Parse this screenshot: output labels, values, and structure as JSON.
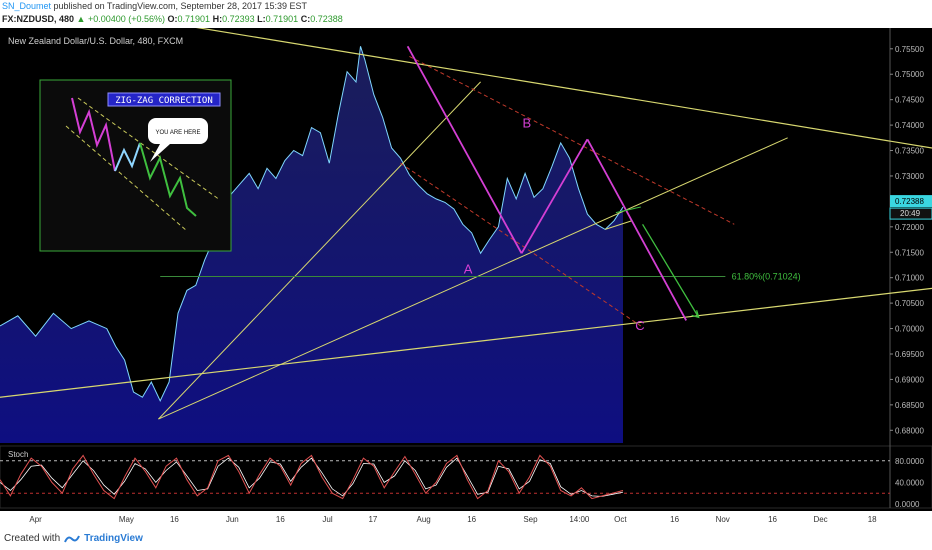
{
  "header": {
    "user": "SN_Doumet",
    "published_text": "published on TradingView.com, September 28, 2017 15:39 EST",
    "symbol": "FX:NZDUSD, 480",
    "change": "▲ +0.00400 (+0.56%)",
    "ohlc": [
      {
        "k": "O:",
        "v": "0.71901"
      },
      {
        "k": "H:",
        "v": "0.72393"
      },
      {
        "k": "L:",
        "v": "0.71901"
      },
      {
        "k": "C:",
        "v": "0.72388"
      }
    ]
  },
  "footer": {
    "created_with": "Created with",
    "brand": "TradingView"
  },
  "colors": {
    "background": "#000000",
    "price_line": "#7fd6ff",
    "area_top": "#1c1f5e",
    "area_bottom": "#0f0f88",
    "trendline": "#d8d870",
    "wave": "#d43fd4",
    "channel": "#c0392b",
    "fib": "#3a8a3a",
    "stoch_k": "#e05050",
    "stoch_d": "#ffffff",
    "green": "#3fbf3f",
    "price_badge": "#3ad6e0"
  },
  "chart_data": {
    "type": "line",
    "title": "New Zealand Dollar/U.S. Dollar, 480, FXCM",
    "ylim": [
      0.6775,
      0.7585
    ],
    "y_ticks": [
      "0.75500",
      "0.75000",
      "0.74500",
      "0.74000",
      "0.73500",
      "0.73000",
      "0.72500",
      "0.72000",
      "0.71500",
      "0.71000",
      "0.70500",
      "0.70000",
      "0.69500",
      "0.69000",
      "0.68500",
      "0.68000"
    ],
    "x_ticks": [
      "Apr",
      "May",
      "16",
      "Jun",
      "16",
      "Jul",
      "17",
      "Aug",
      "16",
      "Sep",
      "14:00",
      "Oct",
      "16",
      "Nov",
      "16",
      "Dec",
      "18"
    ],
    "last_price": "0.72388",
    "countdown": "20:49",
    "price_series": {
      "x": [
        0,
        0.02,
        0.04,
        0.06,
        0.08,
        0.1,
        0.12,
        0.13,
        0.14,
        0.15,
        0.16,
        0.17,
        0.18,
        0.19,
        0.2,
        0.21,
        0.22,
        0.23,
        0.24,
        0.25,
        0.26,
        0.27,
        0.28,
        0.29,
        0.3,
        0.31,
        0.32,
        0.33,
        0.34,
        0.35,
        0.36,
        0.37,
        0.38,
        0.39,
        0.4,
        0.405,
        0.41,
        0.42,
        0.43,
        0.44,
        0.45,
        0.46,
        0.47,
        0.48,
        0.49,
        0.5,
        0.51,
        0.52,
        0.53,
        0.54,
        0.55,
        0.56,
        0.57,
        0.58,
        0.59,
        0.6,
        0.61,
        0.62,
        0.63,
        0.64,
        0.65,
        0.655,
        0.66,
        0.67,
        0.68,
        0.69,
        0.7
      ],
      "y": [
        0.7005,
        0.7025,
        0.6985,
        0.703,
        0.7,
        0.7015,
        0.7,
        0.6965,
        0.6938,
        0.6875,
        0.6865,
        0.6895,
        0.6858,
        0.6895,
        0.703,
        0.7075,
        0.7085,
        0.7135,
        0.7175,
        0.7225,
        0.7265,
        0.7285,
        0.7305,
        0.7275,
        0.7315,
        0.7295,
        0.733,
        0.735,
        0.734,
        0.7395,
        0.7385,
        0.7325,
        0.742,
        0.7505,
        0.7485,
        0.7555,
        0.7528,
        0.746,
        0.7415,
        0.7355,
        0.7335,
        0.7302,
        0.7282,
        0.7265,
        0.7255,
        0.7248,
        0.7235,
        0.7205,
        0.7188,
        0.7148,
        0.7175,
        0.72,
        0.7295,
        0.7255,
        0.7305,
        0.7258,
        0.7275,
        0.7318,
        0.7365,
        0.7335,
        0.7275,
        0.725,
        0.7225,
        0.7205,
        0.7195,
        0.7212,
        0.7239
      ]
    },
    "wave_labels": [
      {
        "label": "A",
        "x": 0.526,
        "y": 0.7108
      },
      {
        "label": "B",
        "x": 0.592,
        "y": 0.7395
      },
      {
        "label": "C",
        "x": 0.719,
        "y": 0.6997
      }
    ],
    "fib_level": {
      "label": "61.80%(0.71024)",
      "value": 0.71024
    },
    "inset": {
      "title": "ZIG-ZAG CORRECTION",
      "callout": "YOU ARE HERE"
    },
    "stochastic": {
      "label": "Stoch",
      "ylim": [
        0,
        100
      ],
      "y_ticks": [
        "80.0000",
        "40.0000",
        "0.0000"
      ],
      "k": [
        45,
        15,
        55,
        85,
        70,
        40,
        20,
        65,
        90,
        55,
        25,
        10,
        50,
        85,
        60,
        30,
        70,
        85,
        45,
        15,
        30,
        80,
        90,
        60,
        20,
        55,
        85,
        70,
        35,
        75,
        90,
        50,
        20,
        10,
        45,
        85,
        70,
        30,
        60,
        88,
        55,
        20,
        40,
        75,
        90,
        45,
        10,
        25,
        80,
        60,
        20,
        50,
        90,
        70,
        25,
        15,
        30,
        10,
        15,
        20,
        25
      ],
      "d": [
        40,
        25,
        45,
        70,
        72,
        48,
        30,
        55,
        80,
        62,
        35,
        18,
        42,
        75,
        65,
        40,
        62,
        78,
        52,
        25,
        28,
        70,
        85,
        68,
        30,
        48,
        78,
        74,
        42,
        68,
        85,
        58,
        28,
        15,
        38,
        75,
        74,
        40,
        52,
        80,
        62,
        28,
        35,
        68,
        85,
        52,
        18,
        22,
        70,
        65,
        28,
        42,
        82,
        75,
        32,
        18,
        25,
        15,
        14,
        18,
        22
      ]
    }
  }
}
